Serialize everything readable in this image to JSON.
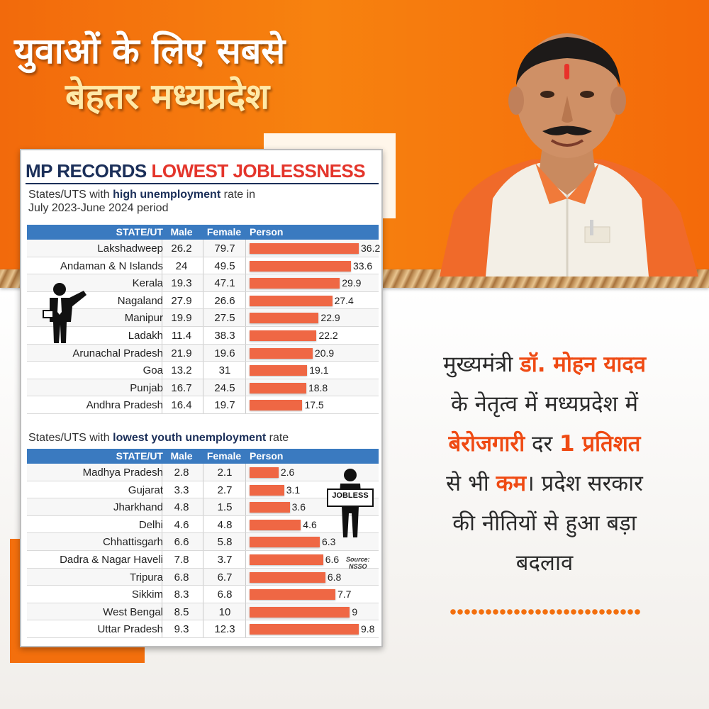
{
  "headline": {
    "line1": "युवाओं के लिए सबसे",
    "line2": "बेहतर मध्यप्रदेश"
  },
  "chart_data": [
    {
      "type": "bar",
      "title": "MP RECORDS LOWEST JOBLESSNESS",
      "title_part1": "MP RECORDS",
      "title_part2": "LOWEST JOBLESSNESS",
      "subtitle_pre": "States/UTS with",
      "subtitle_bold": "high unemployment",
      "subtitle_post": "rate in",
      "subtitle_line2": "July 2023-June 2024 period",
      "columns": [
        "STATE/UT",
        "Male",
        "Female",
        "Person"
      ],
      "categories": [
        "Lakshadweep",
        "Andaman & N Islands",
        "Kerala",
        "Nagaland",
        "Manipur",
        "Ladakh",
        "Arunachal Pradesh",
        "Goa",
        "Punjab",
        "Andhra Pradesh"
      ],
      "male": [
        "26.2",
        "24",
        "19.3",
        "27.9",
        "19.9",
        "11.4",
        "21.9",
        "13.2",
        "16.7",
        "16.4"
      ],
      "female": [
        "79.7",
        "49.5",
        "47.1",
        "26.6",
        "27.5",
        "38.3",
        "19.6",
        "31",
        "24.5",
        "19.7"
      ],
      "values": [
        36.2,
        33.6,
        29.9,
        27.4,
        22.9,
        22.2,
        20.9,
        19.1,
        18.8,
        17.5
      ],
      "value_labels": [
        "36.2",
        "33.6",
        "29.9",
        "27.4",
        "22.9",
        "22.2",
        "20.9",
        "19.1",
        "18.8",
        "17.5"
      ],
      "max": 36.2,
      "bar_color": "#ef6744",
      "header_color": "#3a7ac0"
    },
    {
      "type": "bar",
      "subtitle_pre": "States/UTS with",
      "subtitle_bold": "lowest youth unemployment",
      "subtitle_post": "rate",
      "columns": [
        "STATE/UT",
        "Male",
        "Female",
        "Person"
      ],
      "categories": [
        "Madhya Pradesh",
        "Gujarat",
        "Jharkhand",
        "Delhi",
        "Chhattisgarh",
        "Dadra & Nagar Haveli",
        "Tripura",
        "Sikkim",
        "West Bengal",
        "Uttar Pradesh"
      ],
      "male": [
        "2.8",
        "3.3",
        "4.8",
        "4.6",
        "6.6",
        "7.8",
        "6.8",
        "8.3",
        "8.5",
        "9.3"
      ],
      "female": [
        "2.1",
        "2.7",
        "1.5",
        "4.8",
        "5.8",
        "3.7",
        "6.7",
        "6.8",
        "10",
        "12.3"
      ],
      "values": [
        2.6,
        3.1,
        3.6,
        4.6,
        6.3,
        6.6,
        6.8,
        7.7,
        9,
        9.8
      ],
      "value_labels": [
        "2.6",
        "3.1",
        "3.6",
        "4.6",
        "6.3",
        "6.6",
        "6.8",
        "7.7",
        "9",
        "9.8"
      ],
      "max": 9.8,
      "bar_color": "#ef6744",
      "header_color": "#3a7ac0",
      "jobless_sign": "JOBLESS",
      "source_label": "Source:",
      "source_name": "NSSO"
    }
  ],
  "message": {
    "l1_pre": "मुख्यमंत्री ",
    "l1_hl": "डॉ. मोहन यादव",
    "l2": "के नेतृत्व में मध्यप्रदेश में",
    "l3_hl1": "बेरोजगारी",
    "l3_mid": " दर ",
    "l3_hl2": "1 प्रतिशत",
    "l4_pre": "से भी ",
    "l4_hl": "कम",
    "l4_post": "। प्रदेश सरकार",
    "l5": "की नीतियों से हुआ बड़ा",
    "l6": "बदलाव"
  },
  "colors": {
    "orange": "#f36f0d",
    "highlight": "#ef4a13",
    "navy": "#1b2f59",
    "red_title": "#e4352b"
  }
}
